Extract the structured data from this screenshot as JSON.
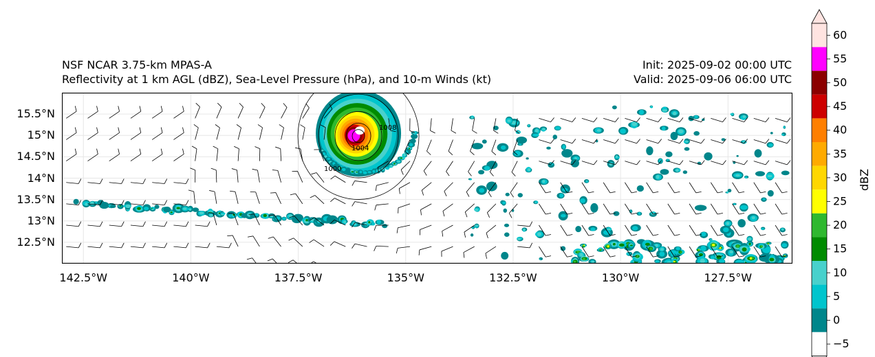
{
  "title": {
    "model": "NSF NCAR 3.75-km MPAS-A",
    "fields": "Reflectivity at 1 km AGL (dBZ), Sea-Level Pressure (hPa), and 10-m Winds (kt)",
    "init": "Init: 2025-09-02 00:00 UTC",
    "valid": "Valid: 2025-09-06 06:00 UTC"
  },
  "map": {
    "lon_range": [
      -143.0,
      -126.0
    ],
    "lat_range": [
      12.0,
      16.0
    ],
    "x_ticks": [
      {
        "lon": -142.5,
        "label": "142.5°W"
      },
      {
        "lon": -140.0,
        "label": "140°W"
      },
      {
        "lon": -137.5,
        "label": "137.5°W"
      },
      {
        "lon": -135.0,
        "label": "135°W"
      },
      {
        "lon": -132.5,
        "label": "132.5°W"
      },
      {
        "lon": -130.0,
        "label": "130°W"
      },
      {
        "lon": -127.5,
        "label": "127.5°W"
      }
    ],
    "y_ticks": [
      {
        "lat": 15.5,
        "label": "15.5°N"
      },
      {
        "lat": 15.0,
        "label": "15°N"
      },
      {
        "lat": 14.5,
        "label": "14.5°N"
      },
      {
        "lat": 14.0,
        "label": "14°N"
      },
      {
        "lat": 13.5,
        "label": "13.5°N"
      },
      {
        "lat": 13.0,
        "label": "13°N"
      },
      {
        "lat": 12.5,
        "label": "12.5°N"
      }
    ],
    "storm_center": {
      "lon": -136.1,
      "lat": 15.05
    },
    "isobar_labels": [
      "1000",
      "1004",
      "1008"
    ]
  },
  "colorbar": {
    "label": "dBZ",
    "levels": [
      -5,
      0,
      5,
      10,
      15,
      20,
      25,
      30,
      35,
      40,
      45,
      50,
      55,
      60
    ],
    "tick_labels": [
      "−5",
      "0",
      "5",
      "10",
      "15",
      "20",
      "25",
      "30",
      "35",
      "40",
      "45",
      "50",
      "55",
      "60"
    ],
    "colors": [
      "#ffffff",
      "#00868b",
      "#00c5cd",
      "#48d1cc",
      "#008b00",
      "#2fb82f",
      "#ffff00",
      "#ffd700",
      "#ffaa00",
      "#ff7f00",
      "#cd0000",
      "#8b0000",
      "#ff00ff",
      "#ffe4e1"
    ]
  }
}
